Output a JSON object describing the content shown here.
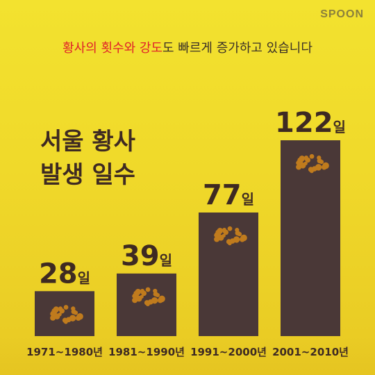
{
  "brand": {
    "logo": "SPOON"
  },
  "headline": {
    "part1": "황사의 횟수와 강도",
    "part2": "도 빠르게 증가하고 있습니다"
  },
  "title": {
    "line1": "서울 황사",
    "line2": "발생 일수"
  },
  "colors": {
    "bar": "#4a3837",
    "dust": "#c07b1d",
    "label": "#3e2a22",
    "background": "#f0d92a",
    "highlight": "#e0202a"
  },
  "chart_data": {
    "type": "bar",
    "title": "서울 황사 발생 일수",
    "categories": [
      "1971~1980년",
      "1981~1990년",
      "1991~2000년",
      "2001~2010년"
    ],
    "values": [
      28,
      39,
      77,
      122
    ],
    "value_suffix": "일",
    "ylim": [
      0,
      122
    ],
    "xlabel": "",
    "ylabel": "",
    "grid": false
  }
}
